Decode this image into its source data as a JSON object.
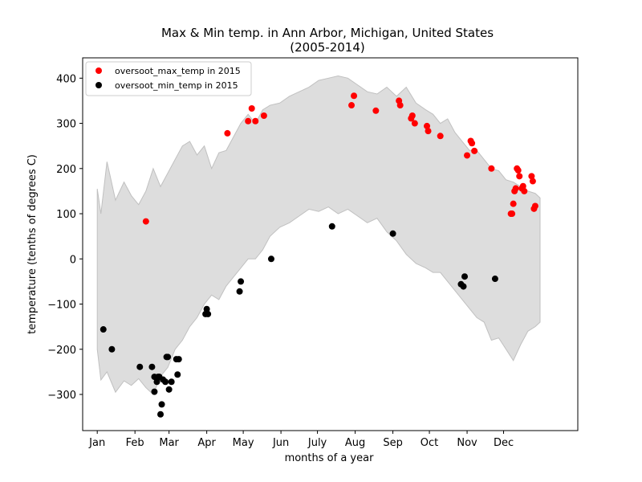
{
  "chart_data": {
    "type": "scatter",
    "title": "Max & Min temp. in Ann Arbor, Michigan, United States",
    "subtitle": "(2005-2014)",
    "xlabel": "months of a year",
    "ylabel": "temperature (tenths of degrees C)",
    "xlim": [
      -12,
      395
    ],
    "ylim": [
      -380,
      445
    ],
    "x_tick_labels": [
      "Jan",
      "Feb",
      "Mar",
      "Apr",
      "May",
      "Jun",
      "July",
      "Aug",
      "Sep",
      "Oct",
      "Nov",
      "Dec"
    ],
    "x_tick_days": [
      0,
      31,
      59,
      90,
      120,
      151,
      181,
      212,
      243,
      273,
      304,
      334
    ],
    "y_ticks": [
      -300,
      -200,
      -100,
      0,
      100,
      200,
      300,
      400
    ],
    "grid": false,
    "legend_position": "top-left",
    "band": {
      "color": "#dddddd",
      "edge_color": "#c0c0c0",
      "x": [
        0,
        3,
        8,
        15,
        22,
        28,
        34,
        40,
        46,
        52,
        58,
        64,
        70,
        76,
        82,
        88,
        94,
        100,
        106,
        112,
        118,
        124,
        130,
        136,
        142,
        150,
        158,
        166,
        174,
        182,
        190,
        198,
        206,
        214,
        222,
        230,
        238,
        246,
        254,
        262,
        270,
        276,
        282,
        288,
        294,
        300,
        306,
        312,
        318,
        324,
        330,
        336,
        342,
        348,
        354,
        360,
        364
      ],
      "max": [
        155,
        100,
        215,
        130,
        170,
        140,
        120,
        150,
        200,
        160,
        190,
        220,
        250,
        260,
        230,
        250,
        200,
        235,
        240,
        270,
        300,
        320,
        300,
        330,
        340,
        345,
        360,
        370,
        380,
        395,
        400,
        405,
        400,
        385,
        370,
        365,
        380,
        360,
        380,
        345,
        330,
        320,
        300,
        310,
        280,
        260,
        240,
        240,
        220,
        200,
        195,
        175,
        170,
        160,
        150,
        145,
        135
      ],
      "min": [
        -200,
        -268,
        -250,
        -295,
        -270,
        -280,
        -265,
        -285,
        -300,
        -260,
        -240,
        -200,
        -180,
        -150,
        -130,
        -100,
        -80,
        -90,
        -60,
        -40,
        -20,
        0,
        0,
        20,
        50,
        70,
        80,
        95,
        110,
        105,
        115,
        100,
        110,
        95,
        80,
        90,
        60,
        40,
        10,
        -10,
        -20,
        -30,
        -30,
        -50,
        -70,
        -90,
        -110,
        -130,
        -140,
        -180,
        -175,
        -200,
        -225,
        -190,
        -160,
        -150,
        -140
      ]
    },
    "series": [
      {
        "name": "oversoot_max_temp in 2015",
        "color": "#ff0000",
        "points": [
          [
            40,
            83
          ],
          [
            107,
            278
          ],
          [
            124,
            305
          ],
          [
            127,
            333
          ],
          [
            130,
            305
          ],
          [
            137,
            317
          ],
          [
            209,
            340
          ],
          [
            211,
            361
          ],
          [
            229,
            328
          ],
          [
            248,
            350
          ],
          [
            249,
            340
          ],
          [
            258,
            311
          ],
          [
            259,
            317
          ],
          [
            261,
            300
          ],
          [
            271,
            294
          ],
          [
            272,
            283
          ],
          [
            282,
            272
          ],
          [
            304,
            229
          ],
          [
            307,
            261
          ],
          [
            308,
            256
          ],
          [
            310,
            239
          ],
          [
            324,
            200
          ],
          [
            340,
            100
          ],
          [
            341,
            100
          ],
          [
            342,
            122
          ],
          [
            343,
            150
          ],
          [
            344,
            156
          ],
          [
            345,
            200
          ],
          [
            346,
            196
          ],
          [
            347,
            183
          ],
          [
            349,
            156
          ],
          [
            350,
            161
          ],
          [
            351,
            150
          ],
          [
            357,
            183
          ],
          [
            358,
            172
          ],
          [
            359,
            111
          ],
          [
            360,
            117
          ]
        ]
      },
      {
        "name": "oversoot_min_temp in 2015",
        "color": "#000000",
        "points": [
          [
            5,
            -156
          ],
          [
            12,
            -200
          ],
          [
            35,
            -239
          ],
          [
            45,
            -239
          ],
          [
            47,
            -261
          ],
          [
            47,
            -294
          ],
          [
            49,
            -272
          ],
          [
            50,
            -261
          ],
          [
            51,
            -261
          ],
          [
            52,
            -344
          ],
          [
            53,
            -322
          ],
          [
            54,
            -267
          ],
          [
            56,
            -272
          ],
          [
            57,
            -217
          ],
          [
            58,
            -217
          ],
          [
            59,
            -289
          ],
          [
            61,
            -272
          ],
          [
            65,
            -222
          ],
          [
            66,
            -256
          ],
          [
            67,
            -222
          ],
          [
            89,
            -122
          ],
          [
            90,
            -111
          ],
          [
            91,
            -122
          ],
          [
            117,
            -72
          ],
          [
            118,
            -50
          ],
          [
            143,
            0
          ],
          [
            193,
            72
          ],
          [
            243,
            56
          ],
          [
            299,
            -56
          ],
          [
            301,
            -61
          ],
          [
            302,
            -39
          ],
          [
            327,
            -44
          ]
        ]
      }
    ]
  }
}
